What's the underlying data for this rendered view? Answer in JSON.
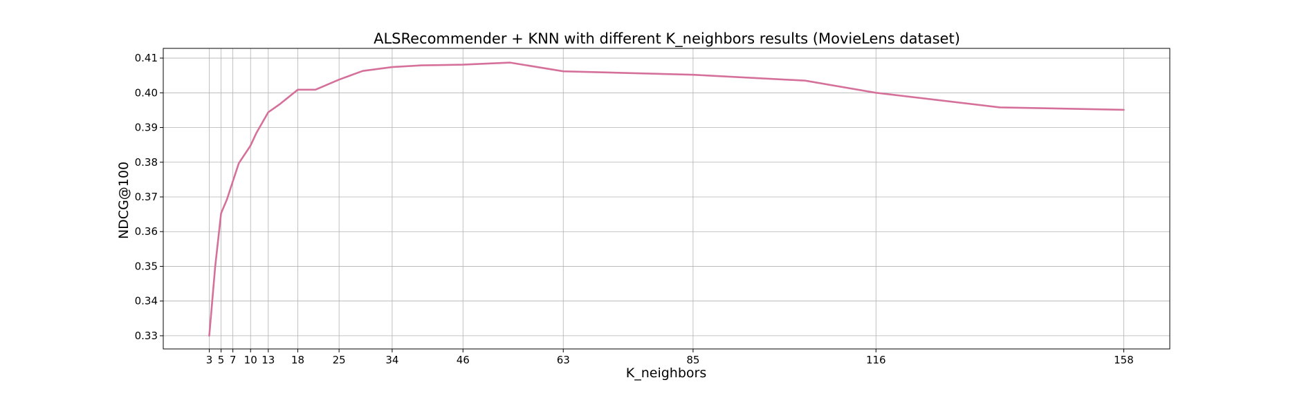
{
  "chart_data": {
    "type": "line",
    "title": "ALSRecommender + KNN with different K_neighbors results (MovieLens dataset)",
    "xlabel": "K_neighbors",
    "ylabel": "NDCG@100",
    "xlim": [
      -4.8,
      165.8
    ],
    "ylim": [
      0.3262,
      0.4128
    ],
    "xticks": [
      3,
      5,
      7,
      10,
      13,
      18,
      25,
      34,
      46,
      63,
      85,
      116,
      158
    ],
    "yticks": [
      0.33,
      0.34,
      0.35,
      0.36,
      0.37,
      0.38,
      0.39,
      0.4,
      0.41
    ],
    "ytick_labels": [
      "0.33",
      "0.34",
      "0.35",
      "0.36",
      "0.37",
      "0.38",
      "0.39",
      "0.40",
      "0.41"
    ],
    "grid": true,
    "color": "#d5709a",
    "series": [
      {
        "x": [
          3,
          4,
          5,
          6,
          7,
          8,
          10,
          11,
          13,
          15,
          18,
          21,
          25,
          29,
          34,
          39,
          46,
          54,
          63,
          85,
          104,
          116,
          137,
          158
        ],
        "y": [
          0.33,
          0.35,
          0.3653,
          0.3693,
          0.3745,
          0.3797,
          0.3848,
          0.3885,
          0.3944,
          0.3968,
          0.4009,
          0.4009,
          0.4038,
          0.4063,
          0.4074,
          0.4079,
          0.4081,
          0.4087,
          0.4062,
          0.4052,
          0.4035,
          0.4,
          0.3958,
          0.3951
        ]
      }
    ]
  }
}
